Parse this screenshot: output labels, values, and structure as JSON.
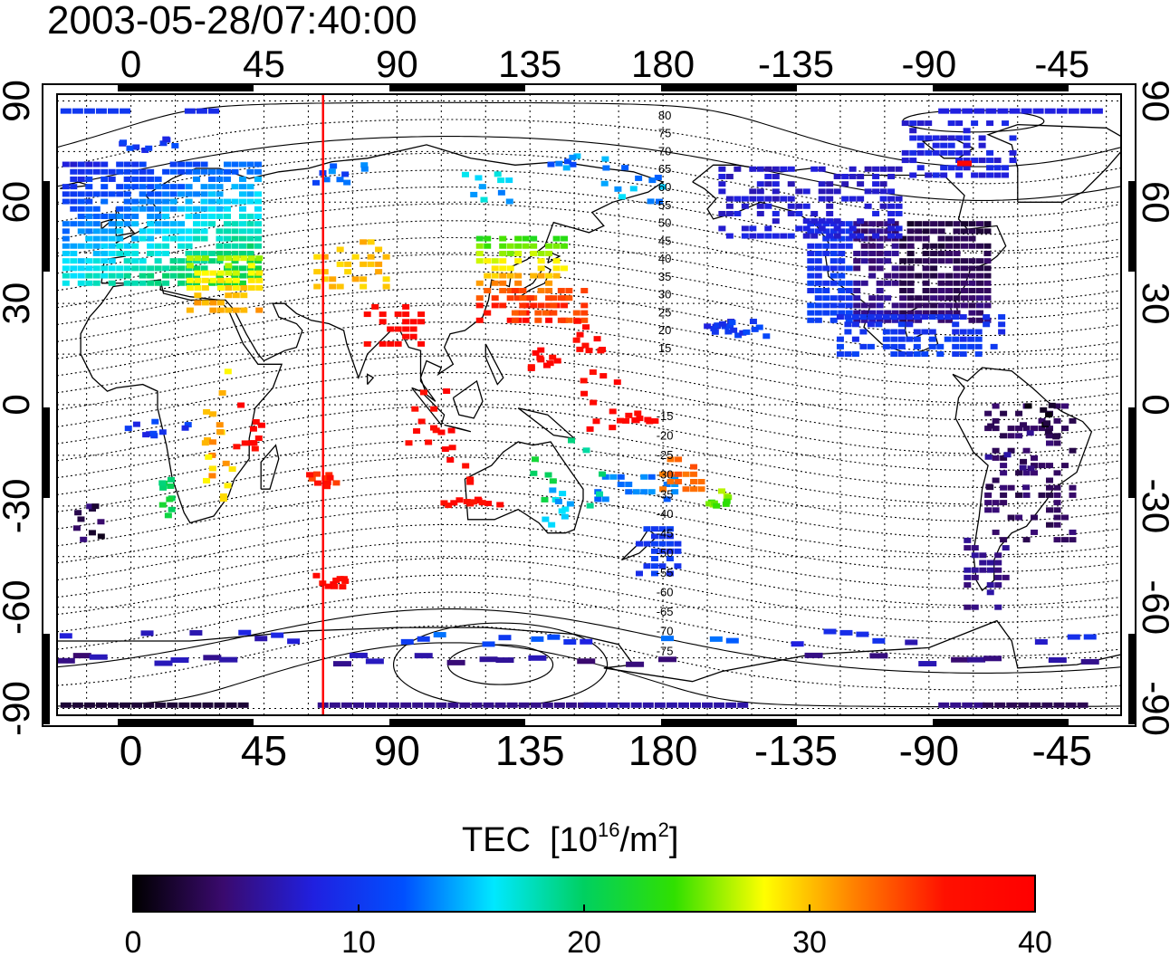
{
  "title": "2003-05-28/07:40:00",
  "colorbar": {
    "label_main": "TEC",
    "label_unit_open": "[10",
    "label_unit_exp": "16",
    "label_unit_mid": "/m",
    "label_unit_exp2": "2",
    "label_unit_close": "]",
    "ticks": [
      "0",
      "10",
      "20",
      "30",
      "40"
    ],
    "range": [
      0,
      40
    ],
    "stops": [
      "#000000",
      "#3a0a6e",
      "#2020e0",
      "#0050ff",
      "#00e8ff",
      "#00d060",
      "#30e000",
      "#ffff00",
      "#ff8000",
      "#ff1000",
      "#ff0000"
    ]
  },
  "map": {
    "lon_ticks_top": [
      "0",
      "45",
      "90",
      "135",
      "180",
      "-135",
      "-90",
      "-45"
    ],
    "lon_ticks_bottom": [
      "0",
      "45",
      "90",
      "135",
      "180",
      "-135",
      "-90",
      "-45"
    ],
    "lat_ticks_left": [
      "90",
      "60",
      "30",
      "0",
      "-30",
      "-60",
      "-90"
    ],
    "lat_ticks_right": [
      "90",
      "60",
      "30",
      "0",
      "-30",
      "-60",
      "-90"
    ],
    "lon_range": [
      -25,
      335
    ],
    "lat_range": [
      -92,
      92
    ],
    "terminator_longitude": 65,
    "terminator_color": "#ff0000",
    "contour_labels_north": [
      "80",
      "75",
      "70",
      "65",
      "60",
      "55",
      "50",
      "45",
      "40",
      "35",
      "30",
      "25",
      "20",
      "15"
    ],
    "contour_labels_south": [
      "15",
      "20",
      "25",
      "30",
      "35",
      "40",
      "45",
      "50",
      "55",
      "60",
      "65",
      "70",
      "75"
    ]
  }
}
